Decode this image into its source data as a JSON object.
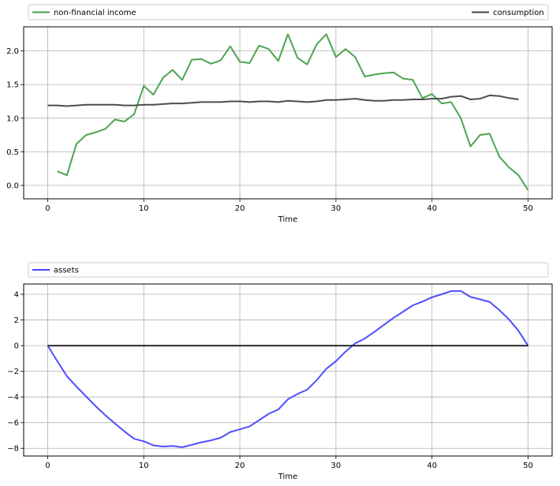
{
  "chart_data": [
    {
      "type": "line",
      "xlabel": "Time",
      "ylabel": "",
      "xlim": [
        -2.5,
        52.5
      ],
      "ylim": [
        -0.2,
        2.36
      ],
      "xticks": [
        0,
        10,
        20,
        30,
        40,
        50
      ],
      "yticks": [
        0.0,
        0.5,
        1.0,
        1.5,
        2.0
      ],
      "ytick_labels": [
        "0.0",
        "0.5",
        "1.0",
        "1.5",
        "2.0"
      ],
      "grid": true,
      "legend_placement": "above, split left/right",
      "series": [
        {
          "name": "non-financial income",
          "color": "#43a047",
          "x": [
            1,
            2,
            3,
            4,
            5,
            6,
            7,
            8,
            9,
            10,
            11,
            12,
            13,
            14,
            15,
            16,
            17,
            18,
            19,
            20,
            21,
            22,
            23,
            24,
            25,
            26,
            27,
            28,
            29,
            30,
            31,
            32,
            33,
            34,
            35,
            36,
            37,
            38,
            39,
            40,
            41,
            42,
            43,
            44,
            45,
            46,
            47,
            48,
            49,
            50
          ],
          "y": [
            0.21,
            0.15,
            0.62,
            0.75,
            0.79,
            0.84,
            0.98,
            0.95,
            1.06,
            1.48,
            1.35,
            1.6,
            1.72,
            1.57,
            1.87,
            1.88,
            1.81,
            1.86,
            2.07,
            1.84,
            1.82,
            2.08,
            2.03,
            1.85,
            2.25,
            1.9,
            1.8,
            2.1,
            2.25,
            1.91,
            2.03,
            1.91,
            1.62,
            1.65,
            1.67,
            1.68,
            1.59,
            1.57,
            1.3,
            1.36,
            1.22,
            1.24,
            1.0,
            0.58,
            0.75,
            0.77,
            0.43,
            0.27,
            0.15,
            -0.07
          ]
        },
        {
          "name": "consumption",
          "color": "#444444",
          "x": [
            0,
            1,
            2,
            3,
            4,
            5,
            6,
            7,
            8,
            9,
            10,
            11,
            12,
            13,
            14,
            15,
            16,
            17,
            18,
            19,
            20,
            21,
            22,
            23,
            24,
            25,
            26,
            27,
            28,
            29,
            30,
            31,
            32,
            33,
            34,
            35,
            36,
            37,
            38,
            39,
            40,
            41,
            42,
            43,
            44,
            45,
            46,
            47,
            48,
            49
          ],
          "y": [
            1.19,
            1.19,
            1.18,
            1.19,
            1.2,
            1.2,
            1.2,
            1.2,
            1.19,
            1.19,
            1.2,
            1.2,
            1.21,
            1.22,
            1.22,
            1.23,
            1.24,
            1.24,
            1.24,
            1.25,
            1.25,
            1.24,
            1.25,
            1.25,
            1.24,
            1.26,
            1.25,
            1.24,
            1.25,
            1.27,
            1.27,
            1.28,
            1.29,
            1.27,
            1.26,
            1.26,
            1.27,
            1.27,
            1.28,
            1.28,
            1.29,
            1.29,
            1.32,
            1.33,
            1.28,
            1.29,
            1.34,
            1.33,
            1.3,
            1.28
          ]
        }
      ]
    },
    {
      "type": "line",
      "xlabel": "Time",
      "ylabel": "",
      "xlim": [
        -2.5,
        52.5
      ],
      "ylim": [
        -8.6,
        4.8
      ],
      "xticks": [
        0,
        10,
        20,
        30,
        40,
        50
      ],
      "yticks": [
        -8,
        -6,
        -4,
        -2,
        0,
        2,
        4
      ],
      "ytick_labels": [
        "−8",
        "−6",
        "−4",
        "−2",
        "0",
        "2",
        "4"
      ],
      "grid": true,
      "legend_placement": "above-left",
      "series": [
        {
          "name": "assets",
          "color": "#4444ff",
          "x": [
            0,
            1,
            2,
            3,
            4,
            5,
            6,
            7,
            8,
            9,
            10,
            11,
            12,
            13,
            14,
            15,
            16,
            17,
            18,
            19,
            20,
            21,
            22,
            23,
            24,
            25,
            26,
            27,
            28,
            29,
            30,
            31,
            32,
            33,
            34,
            35,
            36,
            37,
            38,
            39,
            40,
            41,
            42,
            43,
            44,
            45,
            46,
            47,
            48,
            49,
            50
          ],
          "y": [
            0,
            -1.2,
            -2.38,
            -3.2,
            -3.96,
            -4.72,
            -5.42,
            -6.07,
            -6.69,
            -7.26,
            -7.45,
            -7.77,
            -7.86,
            -7.82,
            -7.92,
            -7.73,
            -7.53,
            -7.38,
            -7.18,
            -6.73,
            -6.52,
            -6.3,
            -5.81,
            -5.31,
            -4.98,
            -4.18,
            -3.77,
            -3.43,
            -2.69,
            -1.81,
            -1.21,
            -0.47,
            0.18,
            0.55,
            1.07,
            1.62,
            2.17,
            2.65,
            3.14,
            3.43,
            3.77,
            4.0,
            4.25,
            4.25,
            3.8,
            3.61,
            3.41,
            2.77,
            2.05,
            1.15,
            0
          ]
        },
        {
          "name": "",
          "color": "#222222",
          "x": [
            0,
            50
          ],
          "y": [
            0,
            0
          ]
        }
      ]
    }
  ]
}
